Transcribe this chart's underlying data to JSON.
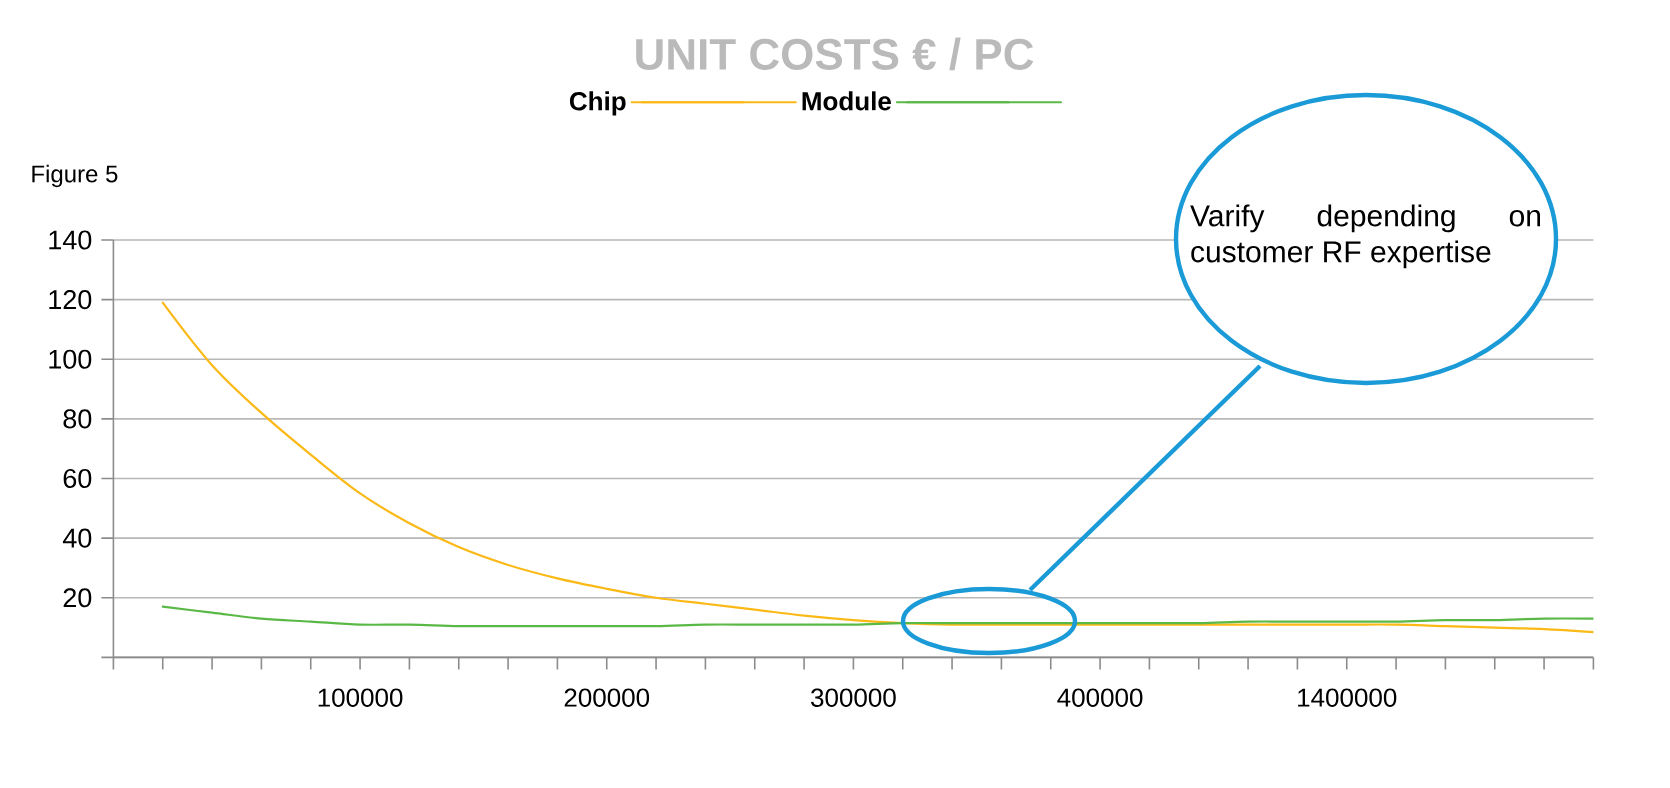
{
  "chart_data": {
    "type": "line",
    "title": "UNIT COSTS € / PC",
    "categories": [
      null,
      null,
      null,
      null,
      null,
      "100000",
      null,
      null,
      null,
      null,
      "200000",
      null,
      null,
      null,
      null,
      "300000",
      null,
      null,
      null,
      null,
      "400000",
      null,
      null,
      null,
      null,
      "1400000",
      null,
      null,
      null,
      null,
      null
    ],
    "series": [
      {
        "name": "Chip",
        "color": "#fbb917",
        "values": [
          null,
          119,
          98,
          82,
          68,
          55,
          45,
          37,
          31,
          26.5,
          23,
          20,
          18,
          16,
          14,
          12.5,
          11.5,
          11,
          11,
          11,
          11,
          11,
          11,
          11,
          11,
          11,
          11,
          10.5,
          10,
          9.5,
          8.5
        ]
      },
      {
        "name": "Module",
        "color": "#5ab946",
        "values": [
          null,
          17,
          15,
          13,
          12,
          11,
          11,
          10.5,
          10.5,
          10.5,
          10.5,
          10.5,
          11,
          11,
          11,
          11,
          11.5,
          11.5,
          11.5,
          11.5,
          11.5,
          11.5,
          11.5,
          12,
          12,
          12,
          12,
          12.5,
          12.5,
          13,
          13
        ]
      }
    ],
    "ylim": [
      0,
      140
    ],
    "yticks": [
      {
        "value": 0,
        "label": null
      },
      20,
      40,
      60,
      80,
      100,
      120,
      140
    ],
    "grid": "y",
    "legend": "top",
    "annotations": [
      "Figure 5",
      "Varify depending on customer RF expertise"
    ]
  }
}
